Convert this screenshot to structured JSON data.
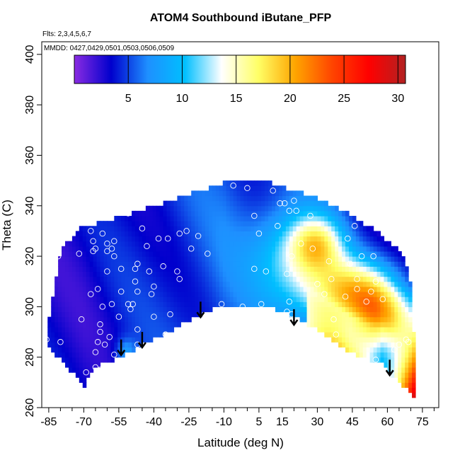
{
  "chart_data": {
    "type": "heatmap",
    "title": "ATOM4 Southbound iButane_PFP",
    "annotations": [
      "Flts: 2,3,4,5,6,7",
      "MMDD: 0427,0429,0501,0503,0506,0509"
    ],
    "xlabel": "Latitude (deg N)",
    "ylabel": "Theta (C)",
    "xlim": [
      -88,
      82
    ],
    "ylim": [
      260,
      405
    ],
    "x_ticks": [
      -85,
      -70,
      -55,
      -40,
      -25,
      -10,
      5,
      15,
      30,
      45,
      60,
      75
    ],
    "x_tick_labels": [
      "-85",
      "-70",
      "-55",
      "-40",
      "-25",
      "-10",
      "5",
      "15",
      "30",
      "45",
      "60",
      "75"
    ],
    "x_minor_ticks": [
      -80,
      -75,
      -65,
      -60,
      -50,
      -45,
      -35,
      -30,
      -20,
      -15,
      -5,
      0,
      10,
      20,
      25,
      35,
      40,
      50,
      55,
      65,
      70,
      80
    ],
    "y_ticks": [
      260,
      280,
      300,
      320,
      340,
      360,
      380,
      400
    ],
    "y_tick_labels": [
      "260",
      "280",
      "300",
      "320",
      "340",
      "360",
      "380",
      "400"
    ],
    "colorbar": {
      "range": [
        0,
        30.7
      ],
      "ticks": [
        5,
        10,
        15,
        20,
        25,
        30
      ],
      "tick_labels": [
        "5",
        "10",
        "15",
        "20",
        "25",
        "30"
      ],
      "dividers": [
        5,
        10,
        15,
        20,
        25,
        30
      ],
      "colors": [
        "#8a2be2",
        "#0000cd",
        "#1e90ff",
        "#00bfff",
        "#ffffff",
        "#ffff66",
        "#ffa500",
        "#ff4500",
        "#ff0000",
        "#b22222"
      ]
    },
    "arrows": [
      {
        "lat": -54,
        "theta": 287
      },
      {
        "lat": -45,
        "theta": 290
      },
      {
        "lat": -20,
        "theta": 302
      },
      {
        "lat": 20,
        "theta": 299
      },
      {
        "lat": 61,
        "theta": 279
      }
    ],
    "points": [
      [
        -86,
        287
      ],
      [
        -81,
        320
      ],
      [
        -80,
        286
      ],
      [
        -72,
        321
      ],
      [
        -71,
        295
      ],
      [
        -69,
        274
      ],
      [
        -67,
        330
      ],
      [
        -67,
        305
      ],
      [
        -66,
        326
      ],
      [
        -66,
        322
      ],
      [
        -65,
        323
      ],
      [
        -65,
        282
      ],
      [
        -65,
        276
      ],
      [
        -64,
        307
      ],
      [
        -64,
        286
      ],
      [
        -63,
        293
      ],
      [
        -63,
        290
      ],
      [
        -63,
        275
      ],
      [
        -62,
        329
      ],
      [
        -62,
        300
      ],
      [
        -61,
        285
      ],
      [
        -60,
        325
      ],
      [
        -60,
        322
      ],
      [
        -60,
        314
      ],
      [
        -59,
        288
      ],
      [
        -58,
        323
      ],
      [
        -58,
        301
      ],
      [
        -57,
        320
      ],
      [
        -57,
        281
      ],
      [
        -57,
        326
      ],
      [
        -55,
        296
      ],
      [
        -54,
        306
      ],
      [
        -54,
        315
      ],
      [
        -51,
        337
      ],
      [
        -51,
        301
      ],
      [
        -50,
        299
      ],
      [
        -49,
        301
      ],
      [
        -48,
        315
      ],
      [
        -48,
        310
      ],
      [
        -47,
        317
      ],
      [
        -47,
        306
      ],
      [
        -47,
        291
      ],
      [
        -47,
        285
      ],
      [
        -43,
        324
      ],
      [
        -42,
        314
      ],
      [
        -41,
        305
      ],
      [
        -40,
        308
      ],
      [
        -40,
        296
      ],
      [
        -38,
        327
      ],
      [
        -36,
        316
      ],
      [
        -35,
        289
      ],
      [
        -34,
        327
      ],
      [
        -33,
        297
      ],
      [
        -30,
        314
      ],
      [
        -29,
        329
      ],
      [
        -29,
        311
      ],
      [
        -26,
        330
      ],
      [
        -24,
        323
      ],
      [
        -21,
        328
      ],
      [
        -17,
        321
      ],
      [
        -11,
        301
      ],
      [
        -6,
        348
      ],
      [
        -2,
        300
      ],
      [
        0,
        347
      ],
      [
        3,
        336
      ],
      [
        3,
        315
      ],
      [
        5,
        329
      ],
      [
        6,
        301
      ],
      [
        8,
        314
      ],
      [
        11,
        346
      ],
      [
        13,
        332
      ],
      [
        14,
        341
      ],
      [
        16,
        341
      ],
      [
        17,
        298
      ],
      [
        17,
        313
      ],
      [
        18,
        302
      ],
      [
        18,
        338
      ],
      [
        19,
        297
      ],
      [
        19,
        320
      ],
      [
        20,
        342
      ],
      [
        21,
        338
      ],
      [
        23,
        325
      ],
      [
        27,
        336
      ],
      [
        28,
        323
      ],
      [
        30,
        309
      ],
      [
        33,
        305
      ],
      [
        35,
        318
      ],
      [
        36,
        311
      ],
      [
        37,
        295
      ],
      [
        38,
        289
      ],
      [
        42,
        304
      ],
      [
        43,
        327
      ],
      [
        43,
        279
      ],
      [
        44,
        317
      ],
      [
        46,
        332
      ],
      [
        47,
        311
      ],
      [
        47,
        307
      ],
      [
        49,
        320
      ],
      [
        51,
        302
      ],
      [
        53,
        306
      ],
      [
        54,
        320
      ],
      [
        55,
        310
      ],
      [
        55,
        279
      ],
      [
        58,
        303
      ],
      [
        60,
        329
      ],
      [
        63,
        283
      ],
      [
        65,
        285
      ],
      [
        68,
        287
      ],
      [
        69,
        286
      ],
      [
        -45,
        331
      ]
    ]
  }
}
